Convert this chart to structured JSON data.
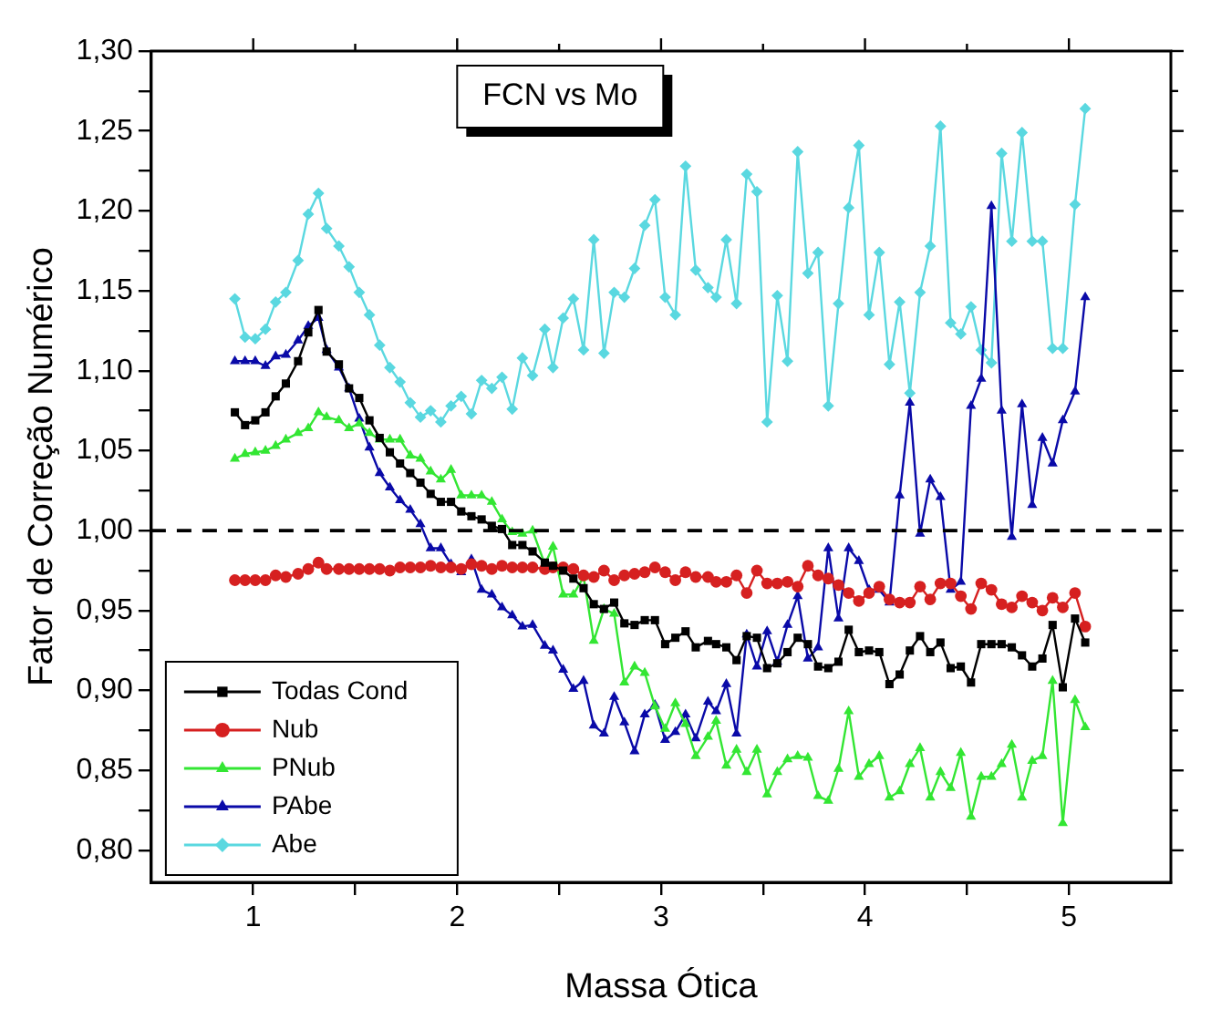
{
  "chart_data": {
    "type": "line",
    "title": "FCN vs Mo",
    "xlabel": "Massa Ótica",
    "ylabel": "Fator de Correção Numérico",
    "x": [
      0.91,
      0.96,
      1.01,
      1.06,
      1.11,
      1.16,
      1.22,
      1.27,
      1.32,
      1.36,
      1.42,
      1.47,
      1.52,
      1.57,
      1.62,
      1.67,
      1.72,
      1.77,
      1.82,
      1.87,
      1.92,
      1.97,
      2.02,
      2.07,
      2.12,
      2.17,
      2.22,
      2.27,
      2.32,
      2.37,
      2.43,
      2.47,
      2.52,
      2.57,
      2.62,
      2.67,
      2.72,
      2.77,
      2.82,
      2.87,
      2.92,
      2.97,
      3.02,
      3.07,
      3.12,
      3.17,
      3.23,
      3.27,
      3.32,
      3.37,
      3.42,
      3.47,
      3.52,
      3.57,
      3.62,
      3.67,
      3.72,
      3.77,
      3.82,
      3.87,
      3.92,
      3.97,
      4.02,
      4.07,
      4.12,
      4.17,
      4.22,
      4.27,
      4.32,
      4.37,
      4.42,
      4.47,
      4.52,
      4.57,
      4.62,
      4.67,
      4.72,
      4.77,
      4.82,
      4.87,
      4.92,
      4.97,
      5.03,
      5.08
    ],
    "series": [
      {
        "name": "Todas Cond",
        "color": "#000000",
        "marker": "square",
        "values": [
          1.074,
          1.066,
          1.069,
          1.074,
          1.084,
          1.092,
          1.106,
          1.124,
          1.138,
          1.112,
          1.104,
          1.089,
          1.083,
          1.069,
          1.058,
          1.049,
          1.042,
          1.036,
          1.03,
          1.023,
          1.018,
          1.018,
          1.012,
          1.009,
          1.007,
          1.003,
          1.001,
          0.991,
          0.991,
          0.987,
          0.98,
          0.978,
          0.975,
          0.97,
          0.964,
          0.954,
          0.951,
          0.955,
          0.942,
          0.941,
          0.944,
          0.944,
          0.929,
          0.933,
          0.937,
          0.927,
          0.931,
          0.929,
          0.927,
          0.919,
          0.934,
          0.933,
          0.914,
          0.917,
          0.924,
          0.933,
          0.929,
          0.915,
          0.914,
          0.918,
          0.938,
          0.924,
          0.925,
          0.924,
          0.904,
          0.91,
          0.925,
          0.934,
          0.924,
          0.93,
          0.914,
          0.915,
          0.905,
          0.929,
          0.929,
          0.929,
          0.927,
          0.922,
          0.915,
          0.92,
          0.941,
          0.902,
          0.945,
          0.93
        ]
      },
      {
        "name": "Nub",
        "color": "#d62020",
        "marker": "circle",
        "values": [
          0.969,
          0.969,
          0.969,
          0.969,
          0.972,
          0.971,
          0.973,
          0.976,
          0.98,
          0.976,
          0.976,
          0.976,
          0.976,
          0.976,
          0.976,
          0.975,
          0.977,
          0.977,
          0.977,
          0.978,
          0.977,
          0.977,
          0.976,
          0.979,
          0.978,
          0.976,
          0.978,
          0.977,
          0.977,
          0.977,
          0.976,
          0.977,
          0.977,
          0.976,
          0.972,
          0.971,
          0.975,
          0.969,
          0.972,
          0.973,
          0.974,
          0.977,
          0.974,
          0.969,
          0.974,
          0.971,
          0.971,
          0.968,
          0.968,
          0.972,
          0.961,
          0.975,
          0.967,
          0.967,
          0.968,
          0.965,
          0.978,
          0.972,
          0.97,
          0.966,
          0.961,
          0.956,
          0.961,
          0.965,
          0.957,
          0.955,
          0.955,
          0.965,
          0.957,
          0.967,
          0.967,
          0.959,
          0.951,
          0.967,
          0.963,
          0.954,
          0.952,
          0.959,
          0.955,
          0.95,
          0.958,
          0.952,
          0.961,
          0.94
        ]
      },
      {
        "name": "PNub",
        "color": "#33e633",
        "marker": "triangle",
        "values": [
          1.045,
          1.048,
          1.049,
          1.05,
          1.053,
          1.057,
          1.061,
          1.064,
          1.074,
          1.071,
          1.069,
          1.064,
          1.067,
          1.061,
          1.057,
          1.057,
          1.057,
          1.047,
          1.045,
          1.037,
          1.032,
          1.038,
          1.022,
          1.022,
          1.022,
          1.018,
          1.007,
          0.999,
          0.998,
          1.0,
          0.979,
          0.99,
          0.96,
          0.96,
          0.971,
          0.931,
          0.951,
          0.948,
          0.905,
          0.915,
          0.911,
          0.89,
          0.876,
          0.892,
          0.879,
          0.859,
          0.871,
          0.881,
          0.853,
          0.863,
          0.849,
          0.863,
          0.835,
          0.849,
          0.857,
          0.859,
          0.858,
          0.834,
          0.831,
          0.851,
          0.887,
          0.846,
          0.854,
          0.859,
          0.833,
          0.837,
          0.854,
          0.864,
          0.833,
          0.849,
          0.839,
          0.861,
          0.821,
          0.846,
          0.846,
          0.854,
          0.866,
          0.833,
          0.856,
          0.859,
          0.906,
          0.817,
          0.894,
          0.877
        ]
      },
      {
        "name": "PAbe",
        "color": "#0a0aa8",
        "marker": "triangle",
        "values": [
          1.106,
          1.106,
          1.106,
          1.103,
          1.109,
          1.11,
          1.119,
          1.128,
          1.133,
          1.113,
          1.102,
          1.089,
          1.07,
          1.052,
          1.036,
          1.027,
          1.019,
          1.013,
          1.004,
          0.989,
          0.989,
          0.979,
          0.974,
          0.982,
          0.963,
          0.96,
          0.952,
          0.947,
          0.94,
          0.941,
          0.928,
          0.925,
          0.913,
          0.901,
          0.906,
          0.878,
          0.873,
          0.896,
          0.88,
          0.862,
          0.885,
          0.891,
          0.869,
          0.874,
          0.885,
          0.87,
          0.893,
          0.887,
          0.904,
          0.873,
          0.935,
          0.915,
          0.937,
          0.918,
          0.941,
          0.959,
          0.92,
          0.927,
          0.989,
          0.945,
          0.989,
          0.981,
          0.963,
          0.963,
          0.955,
          1.022,
          1.08,
          0.998,
          1.032,
          1.021,
          0.963,
          0.968,
          1.078,
          1.095,
          1.203,
          1.075,
          0.996,
          1.079,
          1.016,
          1.058,
          1.042,
          1.069,
          1.087,
          1.146
        ]
      },
      {
        "name": "Abe",
        "color": "#5ad8e0",
        "marker": "diamond",
        "values": [
          1.145,
          1.121,
          1.12,
          1.126,
          1.143,
          1.149,
          1.169,
          1.198,
          1.211,
          1.189,
          1.178,
          1.165,
          1.149,
          1.135,
          1.116,
          1.102,
          1.093,
          1.08,
          1.071,
          1.075,
          1.068,
          1.078,
          1.084,
          1.073,
          1.094,
          1.089,
          1.096,
          1.076,
          1.108,
          1.097,
          1.126,
          1.102,
          1.133,
          1.145,
          1.113,
          1.182,
          1.111,
          1.149,
          1.146,
          1.164,
          1.191,
          1.207,
          1.146,
          1.135,
          1.228,
          1.163,
          1.152,
          1.146,
          1.182,
          1.142,
          1.223,
          1.212,
          1.068,
          1.147,
          1.106,
          1.237,
          1.161,
          1.174,
          1.078,
          1.142,
          1.202,
          1.241,
          1.135,
          1.174,
          1.104,
          1.143,
          1.086,
          1.149,
          1.178,
          1.253,
          1.13,
          1.123,
          1.14,
          1.113,
          1.105,
          1.236,
          1.181,
          1.249,
          1.181,
          1.181,
          1.114,
          1.114,
          1.204,
          1.264
        ]
      }
    ],
    "xlim": [
      0.5,
      5.5
    ],
    "xticks": [
      1,
      {
        "value": 1.5,
        "label": null
      },
      2,
      {
        "value": 2.5,
        "label": null
      },
      3,
      {
        "value": 3.5,
        "label": null
      },
      4,
      {
        "value": 4.5,
        "label": null
      },
      5
    ],
    "ylim": [
      0.78,
      1.3
    ],
    "yticks": [
      {
        "value": 0.8,
        "label": "0,80"
      },
      {
        "value": 0.825,
        "label": null
      },
      {
        "value": 0.85,
        "label": "0,85"
      },
      {
        "value": 0.875,
        "label": null
      },
      {
        "value": 0.9,
        "label": "0,90"
      },
      {
        "value": 0.925,
        "label": null
      },
      {
        "value": 0.95,
        "label": "0,95"
      },
      {
        "value": 0.975,
        "label": null
      },
      {
        "value": 1.0,
        "label": "1,00"
      },
      {
        "value": 1.025,
        "label": null
      },
      {
        "value": 1.05,
        "label": "1,05"
      },
      {
        "value": 1.075,
        "label": null
      },
      {
        "value": 1.1,
        "label": "1,10"
      },
      {
        "value": 1.125,
        "label": null
      },
      {
        "value": 1.15,
        "label": "1,15"
      },
      {
        "value": 1.175,
        "label": null
      },
      {
        "value": 1.2,
        "label": "1,20"
      },
      {
        "value": 1.225,
        "label": null
      },
      {
        "value": 1.25,
        "label": "1,25"
      },
      {
        "value": 1.275,
        "label": null
      },
      {
        "value": 1.3,
        "label": "1,30"
      }
    ],
    "ref_lines": [
      {
        "axis": "y",
        "value": 1.0,
        "color": "#000000",
        "line_style": "dashed"
      }
    ],
    "grid": false,
    "legend": "bottom left",
    "line_style": "solid"
  }
}
